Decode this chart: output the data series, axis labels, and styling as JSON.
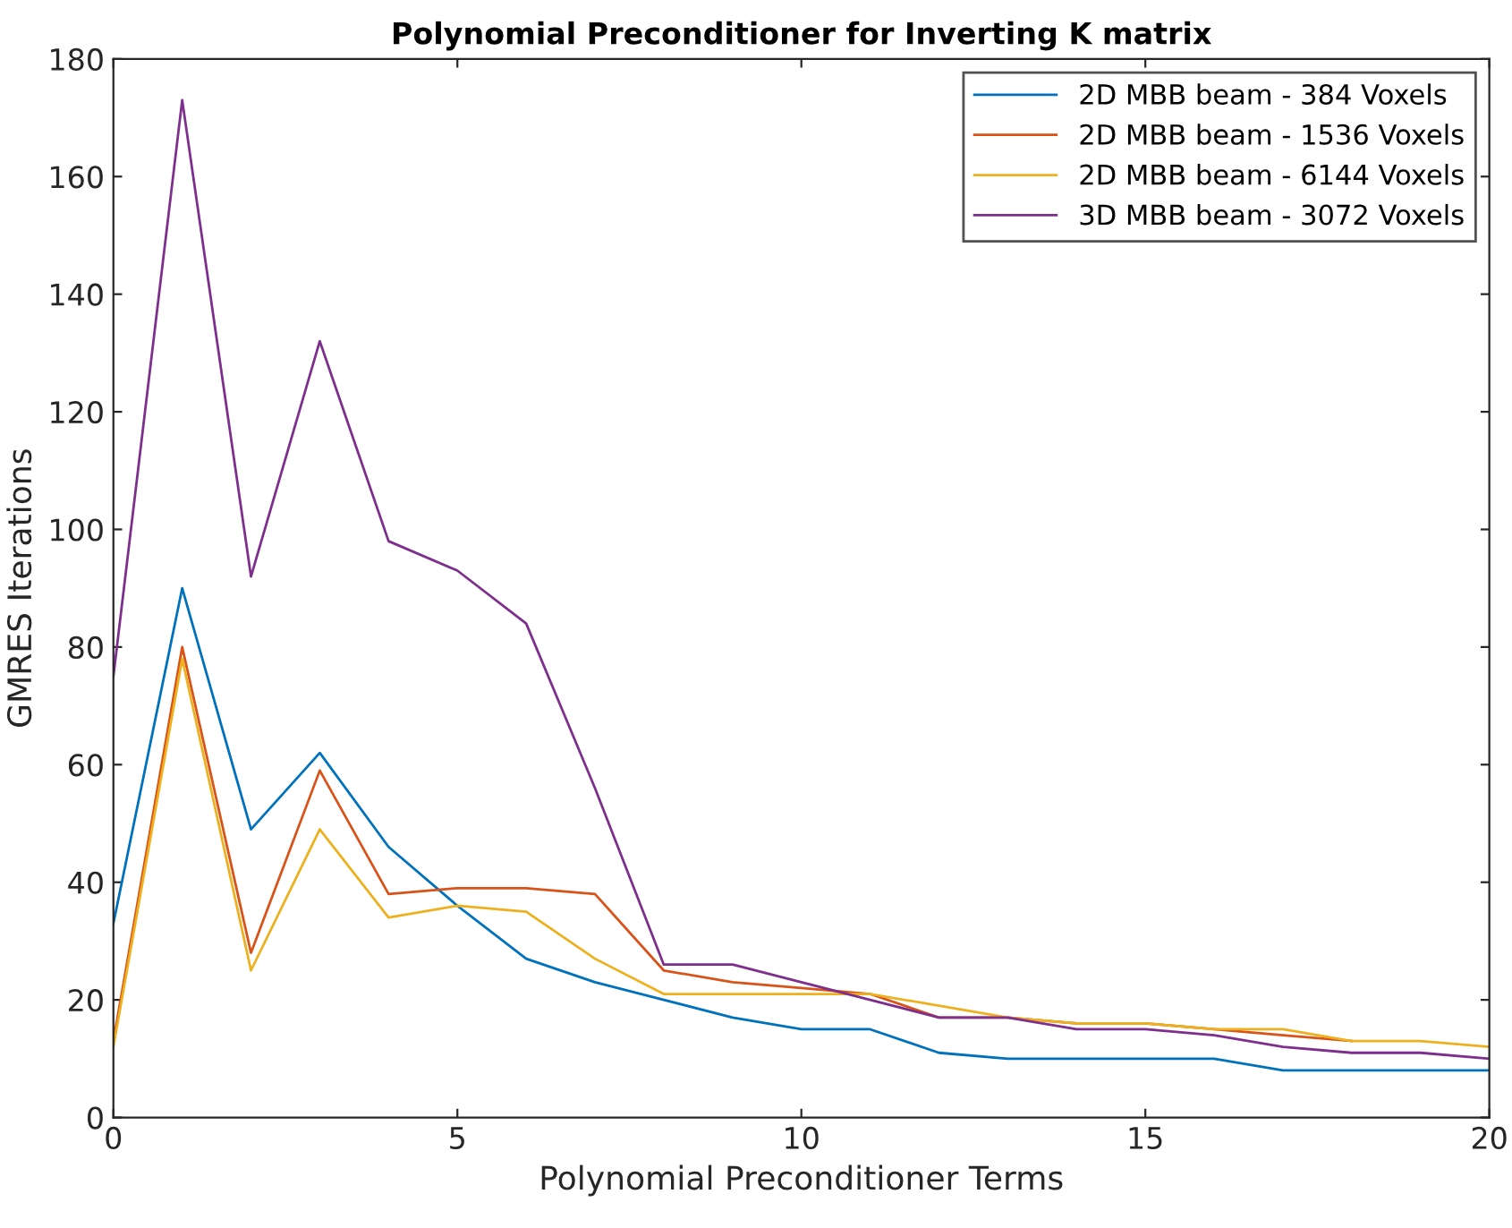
{
  "chart_data": {
    "type": "line",
    "title": "Polynomial Preconditioner for Inverting K matrix",
    "xlabel": "Polynomial Preconditioner Terms",
    "ylabel": "GMRES Iterations",
    "xlim": [
      0,
      20
    ],
    "xticks": [
      0,
      5,
      10,
      15,
      20
    ],
    "ylim": [
      0,
      180
    ],
    "yticks": [
      0,
      20,
      40,
      60,
      80,
      100,
      120,
      140,
      160,
      180
    ],
    "grid": false,
    "legend": "top right",
    "series": [
      {
        "name": "2D MBB beam - 384 Voxels",
        "color": "#0072bd",
        "x": [
          0,
          1,
          2,
          3,
          4,
          5,
          6,
          7,
          8,
          9,
          10,
          11,
          12,
          13,
          14,
          15,
          16,
          17,
          18,
          19,
          20
        ],
        "values": [
          33,
          90,
          49,
          62,
          46,
          36,
          27,
          23,
          20,
          17,
          15,
          15,
          11,
          10,
          10,
          10,
          10,
          8,
          8,
          8,
          8
        ]
      },
      {
        "name": "2D MBB beam - 1536 Voxels",
        "color": "#d95319",
        "x": [
          0,
          1,
          2,
          3,
          4,
          5,
          6,
          7,
          8,
          9,
          10,
          11,
          12,
          13,
          14,
          15,
          16,
          17,
          18
        ],
        "values": [
          13,
          80,
          28,
          59,
          38,
          39,
          39,
          38,
          25,
          23,
          22,
          21,
          17,
          17,
          16,
          16,
          15,
          14,
          13
        ]
      },
      {
        "name": "2D MBB beam - 6144 Voxels",
        "color": "#edb120",
        "x": [
          0,
          1,
          2,
          3,
          4,
          5,
          6,
          7,
          8,
          9,
          10,
          11,
          12,
          13,
          14,
          15,
          16,
          17,
          18,
          19,
          20
        ],
        "values": [
          12,
          78,
          25,
          49,
          34,
          36,
          35,
          27,
          21,
          21,
          21,
          21,
          19,
          17,
          16,
          16,
          15,
          15,
          13,
          13,
          12
        ]
      },
      {
        "name": "3D MBB beam - 3072 Voxels",
        "color": "#7e2f8e",
        "x": [
          0,
          1,
          2,
          3,
          4,
          5,
          6,
          7,
          8,
          9,
          10,
          11,
          12,
          13,
          14,
          15,
          16,
          17,
          18,
          19,
          20
        ],
        "values": [
          75,
          173,
          92,
          132,
          98,
          93,
          84,
          56,
          26,
          26,
          23,
          20,
          17,
          17,
          15,
          15,
          14,
          12,
          11,
          11,
          10
        ]
      }
    ]
  }
}
